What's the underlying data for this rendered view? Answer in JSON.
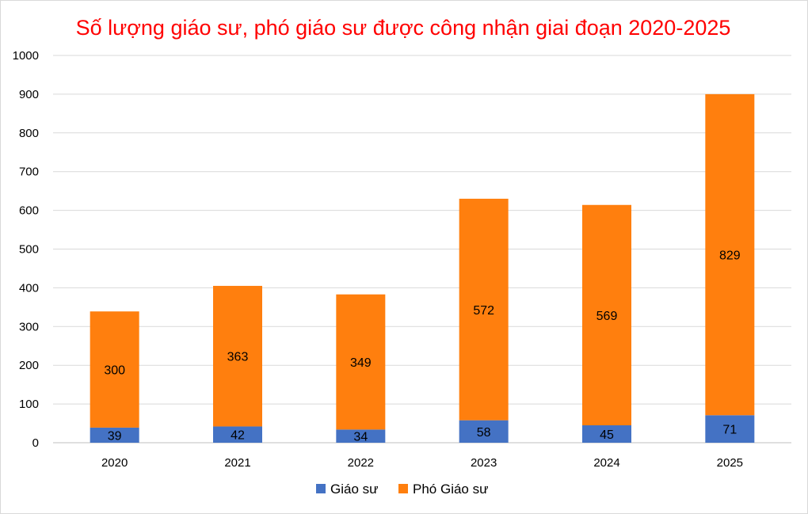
{
  "chart_data": {
    "type": "bar",
    "stacked": true,
    "title": "Số lượng giáo sư, phó giáo sư được công nhận giai đoạn 2020-2025",
    "xlabel": "",
    "ylabel": "",
    "categories": [
      "2020",
      "2021",
      "2022",
      "2023",
      "2024",
      "2025"
    ],
    "series": [
      {
        "name": "Giáo sư",
        "values": [
          39,
          42,
          34,
          58,
          45,
          71
        ],
        "color": "#4472c4"
      },
      {
        "name": "Phó Giáo sư",
        "values": [
          300,
          363,
          349,
          572,
          569,
          829
        ],
        "color": "#ff7f0e"
      }
    ],
    "ylim": [
      0,
      1000
    ],
    "yticks": [
      0,
      100,
      200,
      300,
      400,
      500,
      600,
      700,
      800,
      900,
      1000
    ],
    "grid": true,
    "legend_position": "bottom",
    "data_labels": true
  }
}
